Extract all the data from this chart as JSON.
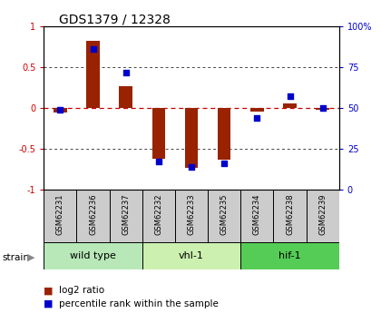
{
  "title": "GDS1379 / 12328",
  "samples": [
    "GSM62231",
    "GSM62236",
    "GSM62237",
    "GSM62232",
    "GSM62233",
    "GSM62235",
    "GSM62234",
    "GSM62238",
    "GSM62239"
  ],
  "log2_ratio": [
    -0.05,
    0.83,
    0.27,
    -0.62,
    -0.73,
    -0.63,
    -0.04,
    0.06,
    -0.02
  ],
  "percentile_rank": [
    49,
    86,
    72,
    17,
    14,
    16,
    44,
    57,
    50
  ],
  "groups": [
    {
      "label": "wild type",
      "indices": [
        0,
        1,
        2
      ],
      "color": "#b8e8b8"
    },
    {
      "label": "vhl-1",
      "indices": [
        3,
        4,
        5
      ],
      "color": "#ccf0b0"
    },
    {
      "label": "hif-1",
      "indices": [
        6,
        7,
        8
      ],
      "color": "#55cc55"
    }
  ],
  "bar_color": "#992200",
  "dot_color": "#0000cc",
  "zero_line_color": "#cc0000",
  "grid_color": "#444444",
  "ylim_left": [
    -1,
    1
  ],
  "ylim_right": [
    0,
    100
  ],
  "yticks_left": [
    -1,
    -0.5,
    0,
    0.5,
    1
  ],
  "yticks_right": [
    0,
    25,
    50,
    75,
    100
  ],
  "ytick_labels_left": [
    "-1",
    "-0.5",
    "0",
    "0.5",
    "1"
  ],
  "ytick_labels_right": [
    "0",
    "25",
    "50",
    "75",
    "100%"
  ],
  "bg_color": "#ffffff",
  "sample_bg_color": "#cccccc"
}
